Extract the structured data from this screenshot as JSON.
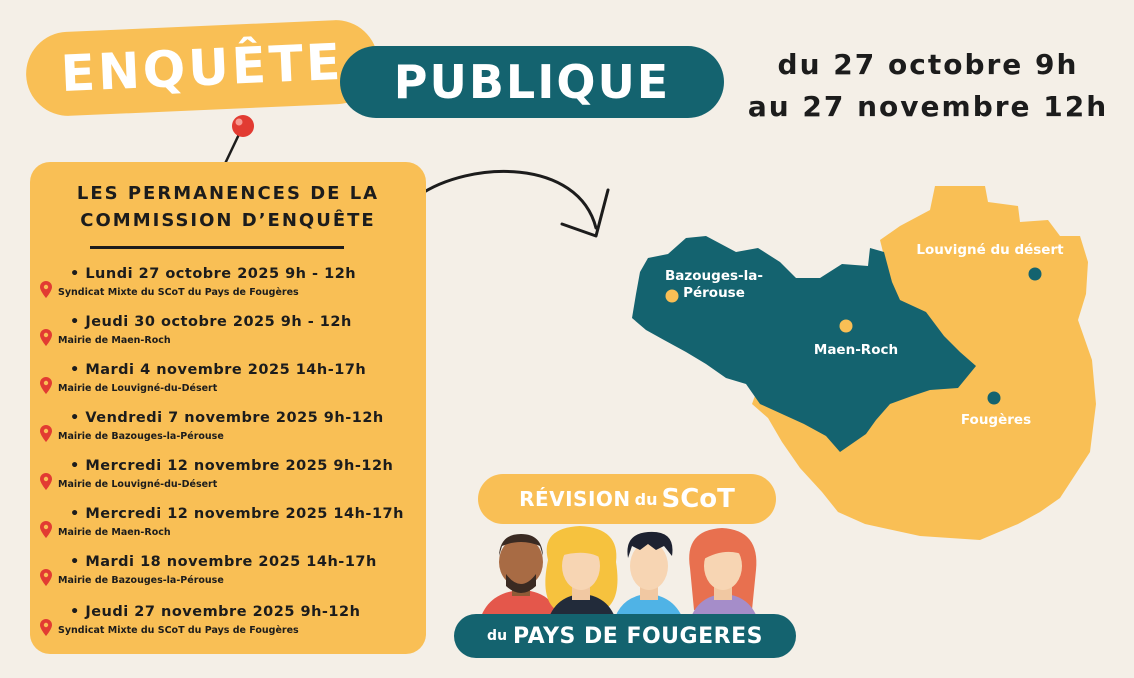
{
  "header": {
    "title_part1": "ENQUÊTE",
    "title_part2": "PUBLIQUE",
    "dates_line1": "du 27 octobre 9h",
    "dates_line2": "au 27 novembre 12h"
  },
  "panel": {
    "title": "LES PERMANENCES DE LA\nCOMMISSION D’ENQUÊTE",
    "slots": [
      {
        "date": "• Lundi 27 octobre 2025  9h - 12h",
        "location": "Syndicat Mixte du SCoT du Pays de Fougères"
      },
      {
        "date": "• Jeudi 30 octobre 2025  9h - 12h",
        "location": "Mairie de Maen-Roch"
      },
      {
        "date": "• Mardi 4 novembre 2025  14h-17h",
        "location": "Mairie de Louvigné-du-Désert"
      },
      {
        "date": "• Vendredi 7 novembre 2025 9h-12h",
        "location": "Mairie de Bazouges-la-Pérouse"
      },
      {
        "date": "• Mercredi 12 novembre 2025 9h-12h",
        "location": "Mairie de Louvigné-du-Désert"
      },
      {
        "date": "• Mercredi 12 novembre 2025 14h-17h",
        "location": "Mairie de Maen-Roch"
      },
      {
        "date": "• Mardi 18 novembre 2025 14h-17h",
        "location": "Mairie de Bazouges-la-Pérouse"
      },
      {
        "date": "• Jeudi 27 novembre 2025 9h-12h",
        "location": "Syndicat Mixte du SCoT du Pays de Fougères"
      }
    ]
  },
  "map": {
    "towns": {
      "bazouges": "Bazouges-la-\nPérouse",
      "maen_roch": "Maen-Roch",
      "louvigne": "Louvigné du désert",
      "fougeres": "Fougères"
    }
  },
  "brand": {
    "revision": "RÉVISION",
    "du_1": "du",
    "scot": "SCoT",
    "du_2": "du",
    "pays": "PAYS DE FOUGERES"
  },
  "colors": {
    "yellow": "#f9bf55",
    "teal": "#14636f",
    "background": "#f4efe7",
    "pin_red": "#e23b32"
  }
}
